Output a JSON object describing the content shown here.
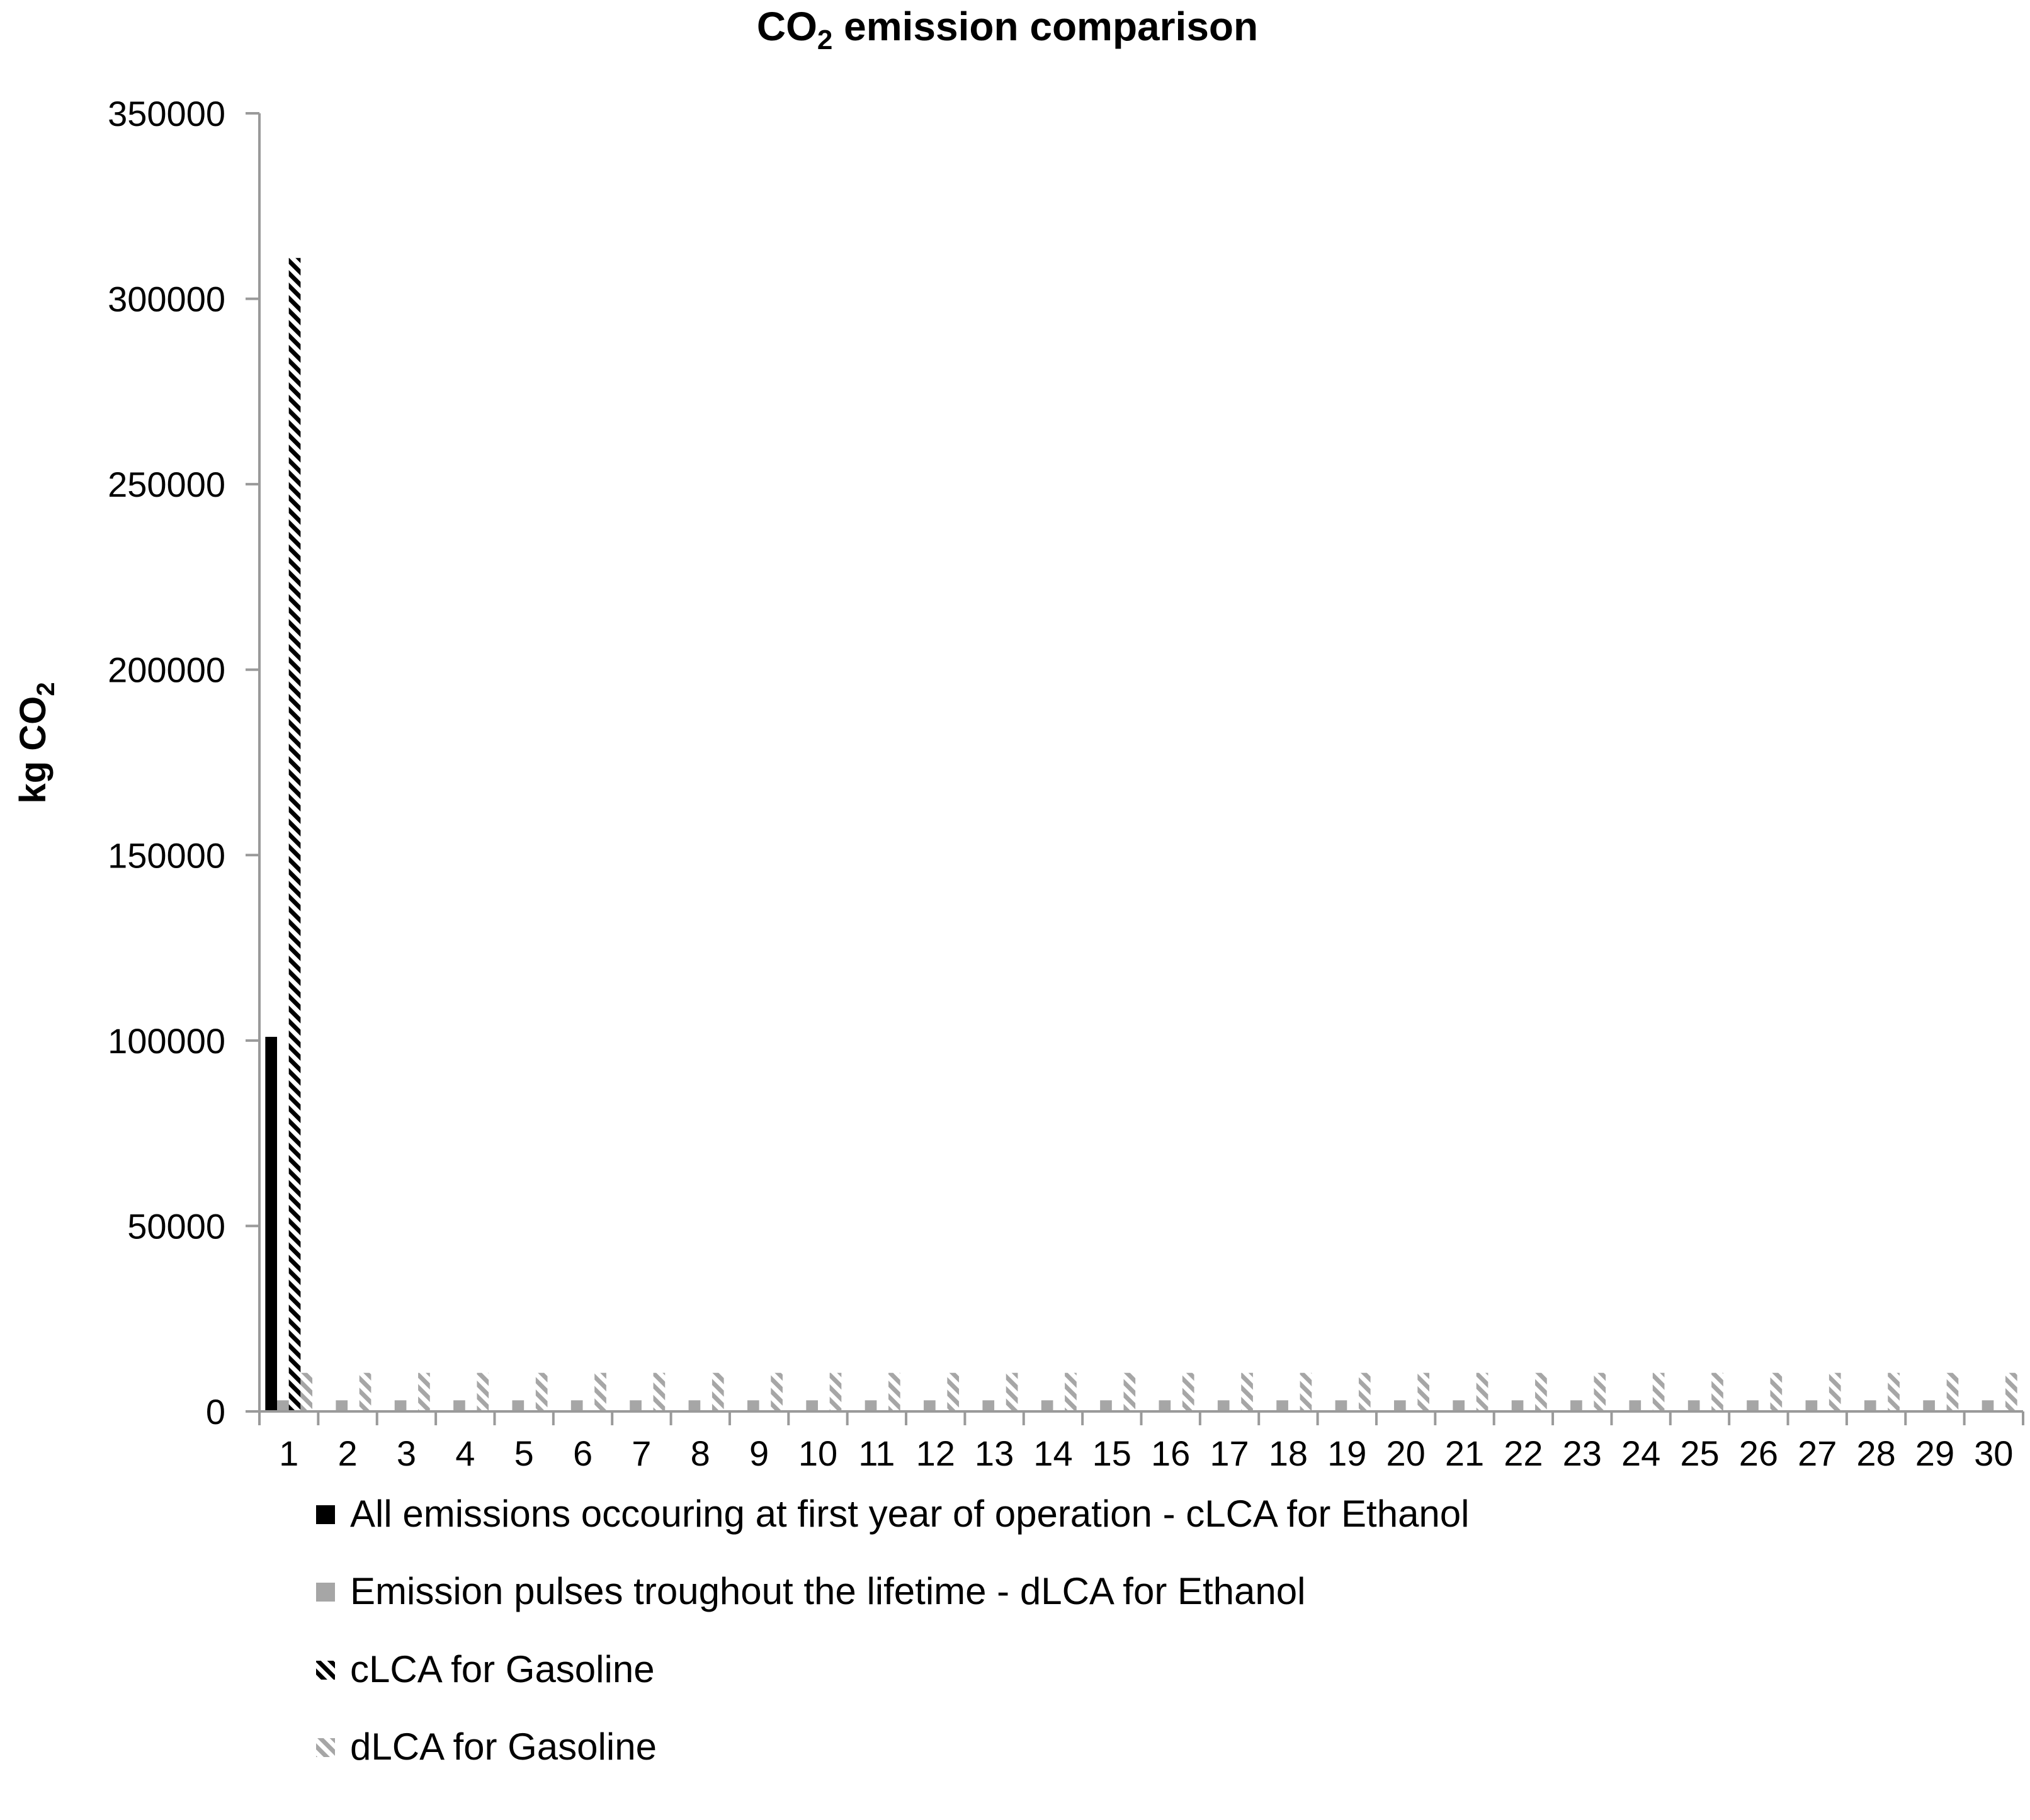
{
  "chart_data": {
    "type": "bar",
    "title": {
      "main": "CO",
      "sub": "2",
      "rest": " emission  comparison"
    },
    "ylabel": {
      "main": "kg CO",
      "sub": "2"
    },
    "xlabel": "",
    "ylim": [
      0,
      350000
    ],
    "yticks": [
      "0",
      "50000",
      "100000",
      "150000",
      "200000",
      "250000",
      "300000",
      "350000"
    ],
    "categories": [
      "1",
      "2",
      "3",
      "4",
      "5",
      "6",
      "7",
      "8",
      "9",
      "10",
      "11",
      "12",
      "13",
      "14",
      "15",
      "16",
      "17",
      "18",
      "19",
      "20",
      "21",
      "22",
      "23",
      "24",
      "25",
      "26",
      "27",
      "28",
      "29",
      "30"
    ],
    "grid": false,
    "legend_position": "bottom",
    "series": [
      {
        "name": "All emissions occouring at first year of operation - cLCA for Ethanol",
        "fill": "solid",
        "color": "#000000",
        "values": [
          101000,
          0,
          0,
          0,
          0,
          0,
          0,
          0,
          0,
          0,
          0,
          0,
          0,
          0,
          0,
          0,
          0,
          0,
          0,
          0,
          0,
          0,
          0,
          0,
          0,
          0,
          0,
          0,
          0,
          0
        ]
      },
      {
        "name": "Emission pulses troughout the lifetime - dLCA for Ethanol",
        "fill": "solid",
        "color": "#a6a6a6",
        "values": [
          3000,
          3000,
          3000,
          3000,
          3000,
          3000,
          3000,
          3000,
          3000,
          3000,
          3000,
          3000,
          3000,
          3000,
          3000,
          3000,
          3000,
          3000,
          3000,
          3000,
          3000,
          3000,
          3000,
          3000,
          3000,
          3000,
          3000,
          3000,
          3000,
          3000
        ]
      },
      {
        "name": "cLCA for Gasoline",
        "fill": "hatch",
        "color": "#000000",
        "values": [
          311000,
          0,
          0,
          0,
          0,
          0,
          0,
          0,
          0,
          0,
          0,
          0,
          0,
          0,
          0,
          0,
          0,
          0,
          0,
          0,
          0,
          0,
          0,
          0,
          0,
          0,
          0,
          0,
          0,
          0
        ]
      },
      {
        "name": "dLCA for Gasoline",
        "fill": "hatch",
        "color": "#a6a6a6",
        "values": [
          10400,
          10400,
          10400,
          10400,
          10400,
          10400,
          10400,
          10400,
          10400,
          10400,
          10400,
          10400,
          10400,
          10400,
          10400,
          10400,
          10400,
          10400,
          10400,
          10400,
          10400,
          10400,
          10400,
          10400,
          10400,
          10400,
          10400,
          10400,
          10400,
          10400
        ]
      }
    ]
  }
}
